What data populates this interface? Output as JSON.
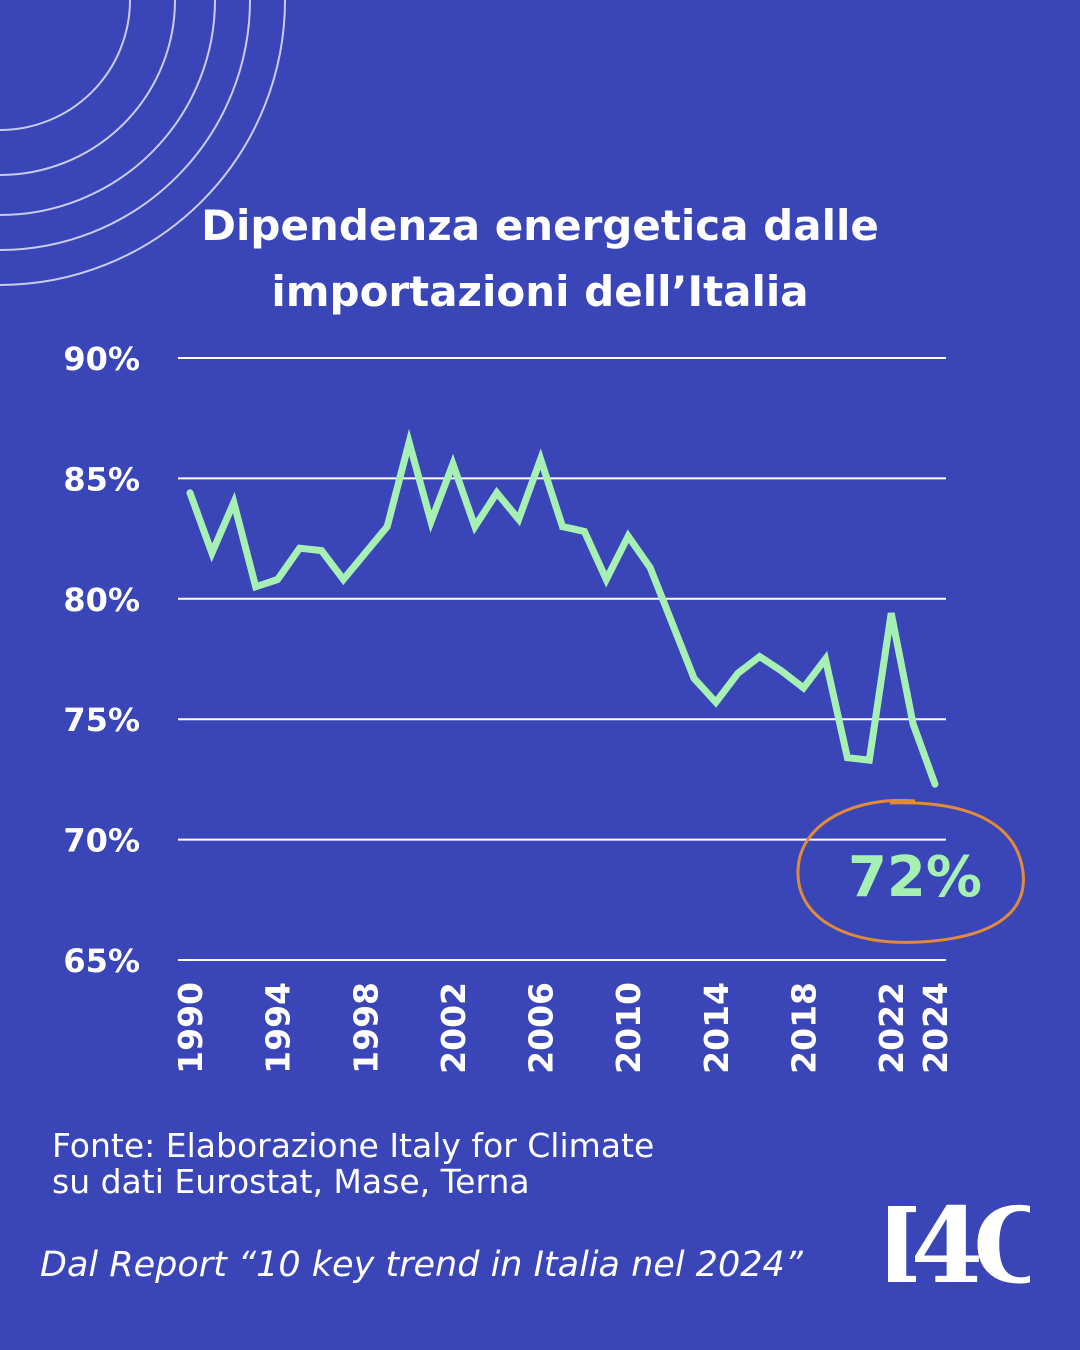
{
  "title_line1": "Dipendenza energetica dalle",
  "title_line2": "importazioni dell’Italia",
  "source_line1": "Fonte: Elaborazione Italy for Climate",
  "source_line2": "su dati Eurostat, Mase, Terna",
  "report": "Dal Report “10 key trend in Italia nel 2024”",
  "logo_text": "I4C",
  "highlight": {
    "label": "72%",
    "text_color": "#a6f0b4",
    "circle_color": "#e08a3a"
  },
  "colors": {
    "background": "#3a45b8",
    "line": "#a6f0b4",
    "grid": "#ffffff",
    "text": "#ffffff"
  },
  "chart_data": {
    "type": "line",
    "title": "Dipendenza energetica dalle importazioni dell’Italia",
    "xlabel": "",
    "ylabel": "",
    "ylim": [
      65,
      90
    ],
    "xlim": [
      1990,
      2024
    ],
    "grid": true,
    "y_ticks": [
      "90%",
      "85%",
      "80%",
      "75%",
      "70%",
      "65%"
    ],
    "x_ticks": [
      "1990",
      "1994",
      "1998",
      "2002",
      "2006",
      "2010",
      "2014",
      "2018",
      "2022",
      "2024"
    ],
    "x": [
      1990,
      1991,
      1992,
      1993,
      1994,
      1995,
      1996,
      1997,
      1998,
      1999,
      2000,
      2001,
      2002,
      2003,
      2004,
      2005,
      2006,
      2007,
      2008,
      2009,
      2010,
      2011,
      2012,
      2013,
      2014,
      2015,
      2016,
      2017,
      2018,
      2019,
      2020,
      2021,
      2022,
      2023,
      2024
    ],
    "series": [
      {
        "values": [
          84.4,
          81.9,
          84.0,
          80.5,
          80.8,
          82.1,
          82.0,
          80.8,
          81.9,
          83.0,
          86.5,
          83.2,
          85.6,
          83.0,
          84.4,
          83.3,
          85.8,
          83.0,
          82.8,
          80.8,
          82.6,
          81.3,
          79.0,
          76.7,
          75.7,
          76.9,
          77.6,
          77.0,
          76.3,
          77.5,
          73.4,
          73.3,
          79.4,
          74.8,
          72.3
        ]
      }
    ]
  }
}
